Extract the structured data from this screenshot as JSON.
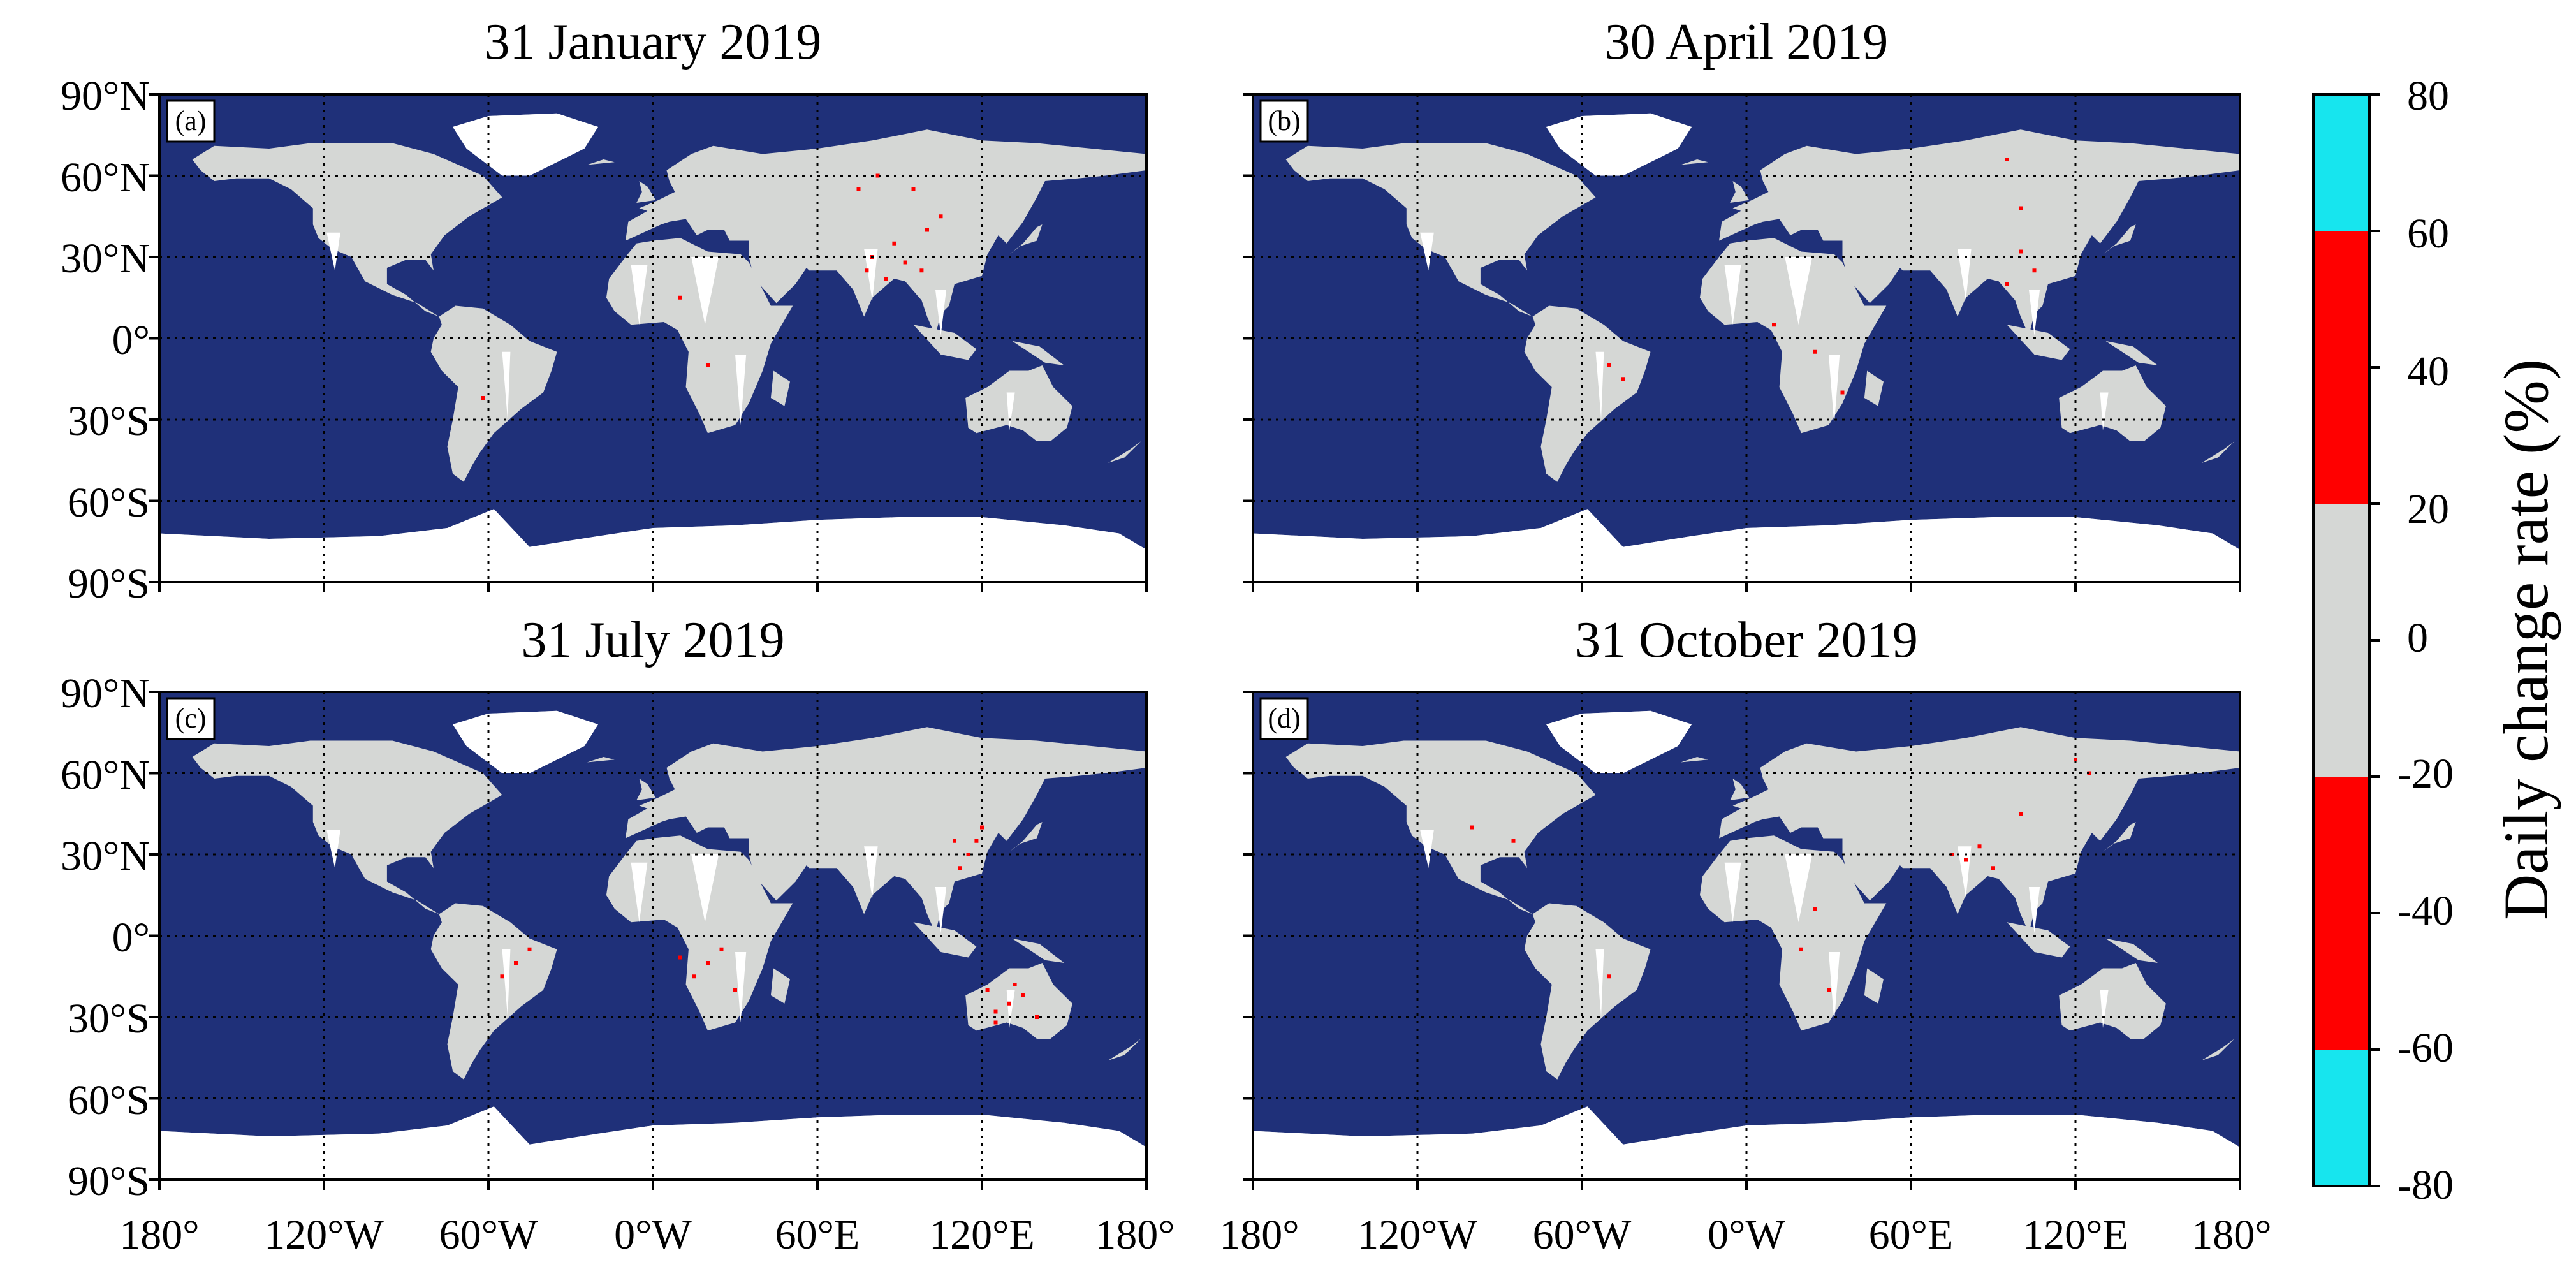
{
  "panels": [
    {
      "id": "a",
      "label": "(a)",
      "title": "31 January 2019",
      "hotspot_color": "#ff0000",
      "hotspots": [
        [
          80,
          30
        ],
        [
          85,
          22
        ],
        [
          92,
          28
        ],
        [
          100,
          40
        ],
        [
          88,
          35
        ],
        [
          95,
          55
        ],
        [
          105,
          45
        ],
        [
          78,
          25
        ],
        [
          -62,
          -22
        ],
        [
          10,
          15
        ],
        [
          20,
          -10
        ],
        [
          75,
          55
        ],
        [
          82,
          60
        ],
        [
          98,
          25
        ]
      ]
    },
    {
      "id": "b",
      "label": "(b)",
      "title": "30 April 2019",
      "hotspot_color": "#ff0000",
      "hotspots": [
        [
          105,
          25
        ],
        [
          100,
          32
        ],
        [
          95,
          66
        ],
        [
          100,
          48
        ],
        [
          35,
          -20
        ],
        [
          10,
          5
        ],
        [
          -50,
          -10
        ],
        [
          -45,
          -15
        ],
        [
          25,
          -5
        ],
        [
          95,
          20
        ]
      ]
    },
    {
      "id": "c",
      "label": "(c)",
      "title": "31 July 2019",
      "hotspot_color": "#ff0000",
      "hotspots": [
        [
          115,
          30
        ],
        [
          118,
          35
        ],
        [
          112,
          25
        ],
        [
          120,
          40
        ],
        [
          130,
          -25
        ],
        [
          125,
          -28
        ],
        [
          135,
          -22
        ],
        [
          140,
          -30
        ],
        [
          122,
          -20
        ],
        [
          20,
          -10
        ],
        [
          25,
          -5
        ],
        [
          15,
          -15
        ],
        [
          30,
          -20
        ],
        [
          10,
          -8
        ],
        [
          -55,
          -15
        ],
        [
          -50,
          -10
        ],
        [
          -45,
          -5
        ],
        [
          110,
          35
        ],
        [
          125,
          -32
        ],
        [
          132,
          -18
        ]
      ]
    },
    {
      "id": "d",
      "label": "(d)",
      "title": "31 October 2019",
      "hotspot_color": "#ff0000",
      "hotspots": [
        [
          80,
          28
        ],
        [
          90,
          25
        ],
        [
          75,
          30
        ],
        [
          120,
          65
        ],
        [
          125,
          60
        ],
        [
          -85,
          35
        ],
        [
          -100,
          40
        ],
        [
          30,
          -20
        ],
        [
          20,
          -5
        ],
        [
          25,
          10
        ],
        [
          -50,
          -15
        ],
        [
          100,
          45
        ],
        [
          85,
          33
        ]
      ]
    }
  ],
  "map": {
    "ocean_color": "#1f3079",
    "land_color": "#d5d7d5",
    "nodata_color": "#ffffff",
    "xlim": [
      -180,
      180
    ],
    "ylim": [
      -90,
      90
    ],
    "x_ticks": [
      -180,
      -120,
      -60,
      0,
      60,
      120,
      180
    ],
    "x_tick_labels": [
      "180°",
      "120°W",
      "60°W",
      "0°W",
      "60°E",
      "120°E",
      "180°"
    ],
    "y_ticks": [
      90,
      60,
      30,
      0,
      -30,
      -60,
      -90
    ],
    "y_tick_labels": [
      "90°N",
      "60°N",
      "30°N",
      "0°",
      "30°S",
      "60°S",
      "90°S"
    ],
    "gridlines": "dotted"
  },
  "colorbar": {
    "title": "Daily change rate (%)",
    "ticks": [
      80,
      60,
      40,
      20,
      0,
      -20,
      -40,
      -60,
      -80
    ],
    "tick_labels": [
      "80",
      "60",
      "40",
      "20",
      "0",
      "-20",
      "-40",
      "-60",
      "-80"
    ],
    "bins": [
      {
        "from": 60,
        "to": 80,
        "color": "#17e5ee"
      },
      {
        "from": 20,
        "to": 60,
        "color": "#ff0000"
      },
      {
        "from": -20,
        "to": 20,
        "color": "#d5d7d5"
      },
      {
        "from": -60,
        "to": -20,
        "color": "#ff0000"
      },
      {
        "from": -80,
        "to": -60,
        "color": "#17e5ee"
      }
    ]
  }
}
